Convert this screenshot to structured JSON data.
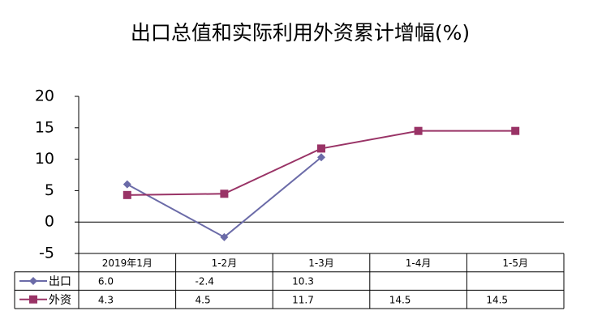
{
  "chart_data": {
    "type": "line",
    "title": "出口总值和实际利用外资累计增幅(%)",
    "categories": [
      "2019年1月",
      "1-2月",
      "1-3月",
      "1-4月",
      "1-5月"
    ],
    "series": [
      {
        "name": "出口",
        "color": "#6b6ba8",
        "marker": "diamond",
        "values": [
          6.0,
          -2.4,
          10.3,
          null,
          null
        ],
        "value_labels": [
          "6.0",
          "-2.4",
          "10.3",
          null,
          null
        ]
      },
      {
        "name": "外资",
        "color": "#993366",
        "marker": "square",
        "values": [
          4.3,
          4.5,
          11.7,
          14.5,
          14.5
        ],
        "value_labels": [
          "4.3",
          "4.5",
          "11.7",
          "14.5",
          "14.5"
        ]
      }
    ],
    "ylim": [
      -5,
      20
    ],
    "yticks": [
      -5,
      0,
      5,
      10,
      15,
      20
    ],
    "grid": false
  }
}
